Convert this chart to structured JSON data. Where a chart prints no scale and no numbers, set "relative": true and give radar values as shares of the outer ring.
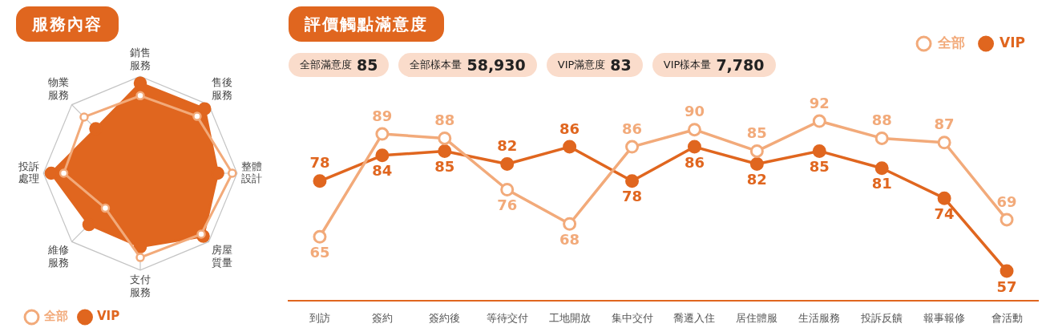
{
  "chart_data": [
    {
      "type": "radar",
      "title": "服務內容",
      "categories": [
        "銷售服務",
        "售後服務",
        "整體設計",
        "房屋質量",
        "支付服務",
        "維修服務",
        "投訴處理",
        "物業服務"
      ],
      "relative": true,
      "legend": "bottom left",
      "marker": "circle",
      "series": [
        {
          "name": "全部",
          "color": "#f2aa7a",
          "values": [
            0.8,
            0.83,
            0.95,
            0.89,
            0.87,
            0.51,
            0.79,
            0.82
          ]
        },
        {
          "name": "VIP",
          "color": "#e0661f",
          "values": [
            0.93,
            0.94,
            0.8,
            0.92,
            0.76,
            0.75,
            0.92,
            0.65
          ]
        }
      ]
    },
    {
      "type": "line",
      "title": "評價觸點滿意度",
      "annotations": [
        "全部滿意度 85",
        "全部樣本量 58,930",
        "VIP滿意度 83",
        "VIP樣本量 7,780"
      ],
      "categories": [
        "到訪",
        "簽約",
        "簽約後",
        "等待交付",
        "工地開放",
        "集中交付",
        "喬遷入住",
        "居住體服",
        "生活服務",
        "投訴反饋",
        "報事報修",
        "會活動"
      ],
      "tick_labels": "x",
      "data_labels": true,
      "legend": "top right",
      "marker": "circle",
      "series": [
        {
          "name": "全部",
          "color": "#f2aa7a",
          "values": [
            65,
            89,
            88,
            76,
            68,
            86,
            90,
            85,
            92,
            88,
            87,
            69
          ]
        },
        {
          "name": "VIP",
          "color": "#e0661f",
          "values": [
            78,
            84,
            85,
            82,
            86,
            78,
            86,
            82,
            85,
            81,
            74,
            57
          ]
        }
      ]
    }
  ]
}
